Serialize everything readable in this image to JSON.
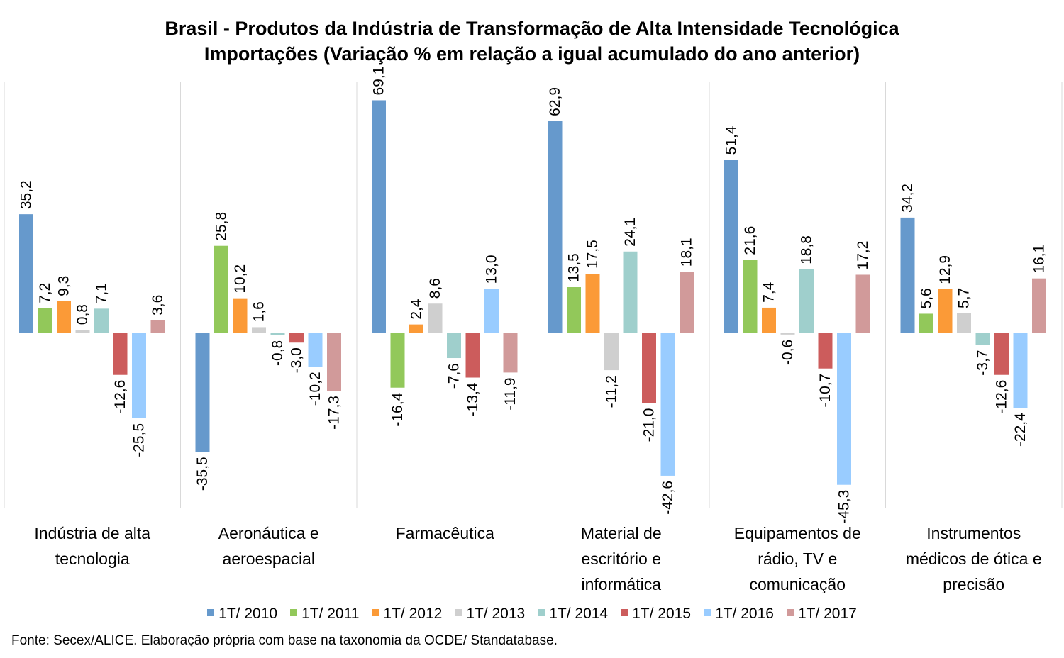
{
  "chart_data": {
    "type": "bar",
    "title": "Brasil - Produtos da Indústria de Transformação de Alta Intensidade Tecnológica",
    "subtitle": "Importações (Variação % em relação a igual acumulado do ano anterior)",
    "categories": [
      [
        "Indústria de alta",
        "tecnologia"
      ],
      [
        "Aeronáutica e",
        "aeroespacial"
      ],
      [
        "Farmacêutica"
      ],
      [
        "Material de",
        "escritório e",
        "informática"
      ],
      [
        "Equipamentos de",
        "rádio, TV e",
        "comunicação"
      ],
      [
        "Instrumentos",
        "médicos de ótica e",
        "precisão"
      ]
    ],
    "series": [
      {
        "name": "1T/ 2010",
        "color": "#6699cc",
        "values": [
          35.2,
          -35.5,
          69.1,
          62.9,
          51.4,
          34.2
        ],
        "labels": [
          "35,2",
          "-35,5",
          "69,1",
          "62,9",
          "51,4",
          "34,2"
        ]
      },
      {
        "name": "1T/ 2011",
        "color": "#92c85a",
        "values": [
          7.2,
          25.8,
          -16.4,
          13.5,
          21.6,
          5.6
        ],
        "labels": [
          "7,2",
          "25,8",
          "-16,4",
          "13,5",
          "21,6",
          "5,6"
        ]
      },
      {
        "name": "1T/ 2012",
        "color": "#fb9a37",
        "values": [
          9.3,
          10.2,
          2.4,
          17.5,
          7.4,
          12.9
        ],
        "labels": [
          "9,3",
          "10,2",
          "2,4",
          "17,5",
          "7,4",
          "12,9"
        ]
      },
      {
        "name": "1T/ 2013",
        "color": "#cfcfcf",
        "values": [
          0.8,
          1.6,
          8.6,
          -11.2,
          -0.6,
          5.7
        ],
        "labels": [
          "0,8",
          "1,6",
          "8,6",
          "-11,2",
          "-0,6",
          "5,7"
        ]
      },
      {
        "name": "1T/ 2014",
        "color": "#9fcfcc",
        "values": [
          7.1,
          -0.8,
          -7.6,
          24.1,
          18.8,
          -3.7
        ],
        "labels": [
          "7,1",
          "-0,8",
          "-7,6",
          "24,1",
          "18,8",
          "-3,7"
        ]
      },
      {
        "name": "1T/ 2015",
        "color": "#cc5c5c",
        "values": [
          -12.6,
          -3.0,
          -13.4,
          -21.0,
          -10.7,
          -12.6
        ],
        "labels": [
          "-12,6",
          "-3,0",
          "-13,4",
          "-21,0",
          "-10,7",
          "-12,6"
        ]
      },
      {
        "name": "1T/ 2016",
        "color": "#99ccff",
        "values": [
          -25.5,
          -10.2,
          13.0,
          -42.6,
          -45.3,
          -22.4
        ],
        "labels": [
          "-25,5",
          "-10,2",
          "13,0",
          "-42,6",
          "-45,3",
          "-22,4"
        ]
      },
      {
        "name": "1T/ 2017",
        "color": "#d19a9a",
        "values": [
          3.6,
          -17.3,
          -11.9,
          18.1,
          17.2,
          16.1
        ],
        "labels": [
          "3,6",
          "-17,3",
          "-11,9",
          "18,1",
          "17,2",
          "16,1"
        ]
      }
    ],
    "grid": false,
    "legend": "bottom",
    "source": "Fonte: Secex/ALICE. Elaboração própria com base na taxonomia da OCDE/ Standatabase."
  }
}
